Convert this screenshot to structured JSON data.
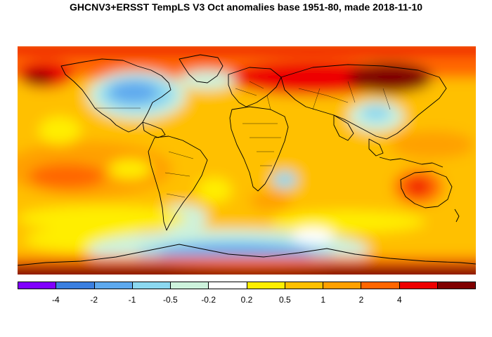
{
  "title": "GHCNV3+ERSST TempLS V3 Oct anomalies base 1951-80, made 2018-11-10",
  "colorbar": {
    "colors": [
      "#8000ff",
      "#3b7fe0",
      "#5ea9ee",
      "#8cd8f0",
      "#cdf2dc",
      "#ffffff",
      "#ffee00",
      "#ffc000",
      "#ffa000",
      "#ff6600",
      "#ee0000",
      "#800000"
    ],
    "tick_labels": [
      "-4",
      "-2",
      "-1",
      "-0.5",
      "-0.2",
      "0.2",
      "0.5",
      "1",
      "2",
      "4"
    ]
  }
}
